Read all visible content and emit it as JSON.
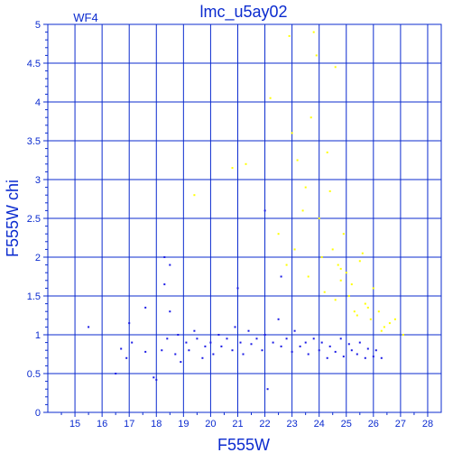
{
  "chart_data": {
    "type": "scatter",
    "title": "lmc_u5ay02",
    "annotation": "WF4",
    "xlabel": "F555W",
    "ylabel": "F555W chi",
    "xlim": [
      14,
      28.5
    ],
    "ylim": [
      0,
      5
    ],
    "xticks": [
      15,
      16,
      17,
      18,
      19,
      20,
      21,
      22,
      23,
      24,
      25,
      26,
      27,
      28
    ],
    "yticks": [
      0,
      0.5,
      1,
      1.5,
      2,
      2.5,
      3,
      3.5,
      4,
      4.5,
      5
    ],
    "grid": true,
    "axis_color": "#0b2bcf",
    "series": [
      {
        "color": "#1a1ae6",
        "x": [
          15.5,
          16.5,
          16.7,
          16.9,
          17.0,
          17.1,
          17.6,
          17.9,
          18.0,
          18.2,
          18.3,
          18.4,
          18.5,
          18.7,
          18.8,
          18.9,
          19.1,
          19.2,
          19.4,
          19.5,
          19.7,
          19.8,
          20.0,
          20.1,
          20.3,
          20.4,
          20.6,
          20.8,
          20.9,
          21.1,
          21.2,
          21.4,
          21.5,
          21.7,
          21.9,
          22.0,
          22.1,
          22.3,
          22.5,
          22.6,
          22.8,
          23.0,
          23.1,
          23.3,
          23.5,
          23.6,
          23.8,
          24.0,
          24.1,
          24.3,
          24.4,
          24.6,
          24.8,
          24.9,
          25.1,
          25.2,
          25.4,
          25.5,
          25.7,
          25.8,
          26.0,
          26.1,
          26.3,
          18.3,
          18.5,
          22.0,
          17.6,
          21.0,
          22.6
        ],
        "y": [
          1.1,
          0.5,
          0.82,
          0.7,
          1.15,
          0.9,
          0.78,
          0.45,
          0.42,
          0.8,
          1.65,
          0.95,
          1.3,
          0.75,
          1.0,
          0.65,
          0.9,
          0.8,
          1.05,
          0.95,
          0.7,
          0.85,
          0.9,
          0.75,
          1.0,
          0.85,
          0.95,
          0.8,
          1.1,
          0.9,
          0.75,
          1.05,
          0.88,
          0.95,
          0.8,
          1.0,
          0.3,
          0.9,
          1.2,
          0.85,
          0.95,
          0.78,
          1.05,
          0.85,
          0.9,
          0.75,
          0.95,
          0.8,
          0.9,
          0.7,
          0.85,
          0.78,
          0.95,
          0.72,
          0.88,
          0.8,
          0.75,
          0.9,
          0.7,
          0.82,
          0.72,
          0.8,
          0.7,
          2.0,
          1.9,
          2.6,
          1.35,
          1.6,
          1.75
        ]
      },
      {
        "color": "#ffff00",
        "x": [
          19.4,
          20.8,
          21.3,
          22.2,
          22.5,
          22.9,
          23.0,
          23.2,
          23.5,
          23.7,
          23.8,
          23.9,
          24.0,
          24.1,
          24.3,
          24.4,
          24.5,
          24.6,
          24.7,
          24.8,
          24.9,
          25.0,
          25.1,
          25.2,
          25.3,
          25.5,
          25.7,
          25.9,
          26.0,
          26.2,
          26.4,
          26.6,
          26.8,
          27.1,
          23.1,
          23.6,
          24.2,
          24.6,
          25.4,
          25.8,
          26.3,
          22.8,
          23.4,
          24.8,
          25.6
        ],
        "y": [
          2.8,
          3.15,
          3.2,
          4.05,
          2.3,
          4.85,
          3.6,
          3.25,
          2.9,
          3.8,
          4.9,
          4.6,
          2.5,
          2.0,
          3.35,
          2.85,
          2.1,
          4.45,
          1.9,
          1.7,
          2.3,
          1.8,
          1.5,
          1.65,
          1.3,
          1.95,
          1.4,
          1.2,
          1.6,
          1.3,
          1.1,
          1.15,
          1.2,
          1.0,
          2.1,
          1.75,
          1.55,
          1.45,
          1.25,
          1.35,
          1.05,
          1.9,
          2.6,
          1.85,
          2.05
        ]
      }
    ]
  }
}
